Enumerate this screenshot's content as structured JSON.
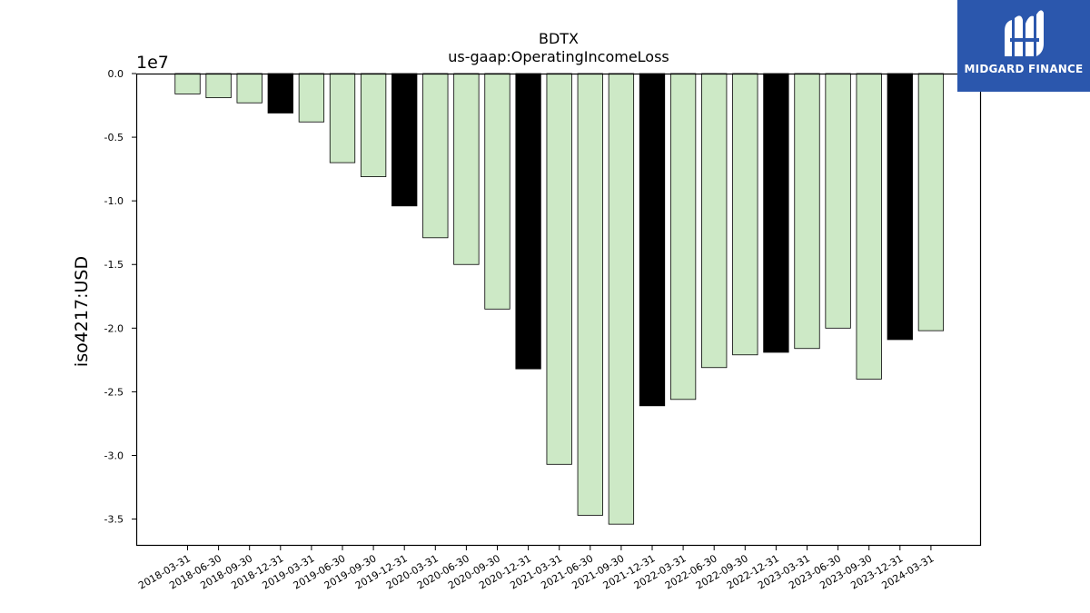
{
  "logo": {
    "name": "MIDGARD FINANCE",
    "bg_color": "#2b57ad",
    "text_color": "#ffffff"
  },
  "chart_data": {
    "type": "bar",
    "title": "BDTX",
    "subtitle": "us-gaap:OperatingIncomeLoss",
    "ylabel": "iso4217:USD",
    "y_exponent_label": "1e7",
    "ylim": [
      -3.71,
      0
    ],
    "yticks": [
      0.0,
      -0.5,
      -1.0,
      -1.5,
      -2.0,
      -2.5,
      -3.0,
      -3.5
    ],
    "ytick_labels": [
      "0.0",
      "-0.5",
      "-1.0",
      "-1.5",
      "-2.0",
      "-2.5",
      "-3.0",
      "-3.5"
    ],
    "colors": {
      "quarterly": "#cde9c6",
      "annual": "#000000",
      "edge": "#000000"
    },
    "categories": [
      "2018-03-31",
      "2018-06-30",
      "2018-09-30",
      "2018-12-31",
      "2019-03-31",
      "2019-06-30",
      "2019-09-30",
      "2019-12-31",
      "2020-03-31",
      "2020-06-30",
      "2020-09-30",
      "2020-12-31",
      "2021-03-31",
      "2021-06-30",
      "2021-09-30",
      "2021-12-31",
      "2022-03-31",
      "2022-06-30",
      "2022-09-30",
      "2022-12-31",
      "2023-03-31",
      "2023-06-30",
      "2023-09-30",
      "2023-12-31",
      "2024-03-31"
    ],
    "values": [
      -0.16,
      -0.19,
      -0.23,
      -0.31,
      -0.38,
      -0.7,
      -0.81,
      -1.04,
      -1.29,
      -1.5,
      -1.85,
      -2.32,
      -3.07,
      -3.47,
      -3.54,
      -2.61,
      -2.56,
      -2.31,
      -2.21,
      -2.19,
      -2.16,
      -2.0,
      -2.4,
      -2.09,
      -2.02
    ],
    "highlight": [
      false,
      false,
      false,
      true,
      false,
      false,
      false,
      true,
      false,
      false,
      false,
      true,
      false,
      false,
      false,
      true,
      false,
      false,
      false,
      true,
      false,
      false,
      false,
      true,
      false
    ],
    "grid": false
  }
}
